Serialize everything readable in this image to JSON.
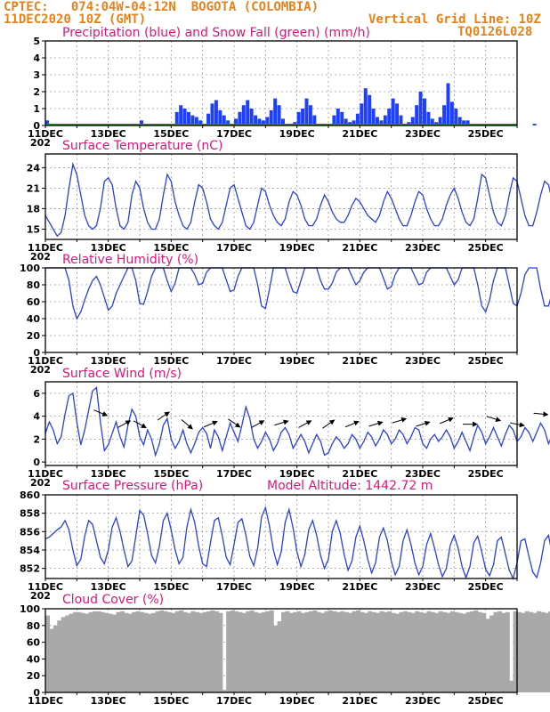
{
  "header": {
    "line1": "CPTEC:   074:04W-04:12N  BOGOTA (COLOMBIA)",
    "line2_left": "11DEC2020 10Z (GMT)",
    "line2_right": "Vertical Grid Line: 10Z",
    "line3_right": "TQ0126L028"
  },
  "x_axis": {
    "tick_labels": [
      "11DEC",
      "13DEC",
      "15DEC",
      "17DEC",
      "19DEC",
      "21DEC",
      "23DEC",
      "25DEC"
    ],
    "start_label_fragment": "202"
  },
  "colors": {
    "precip": "#1f3fff",
    "snow": "#00aa00",
    "line": "#2a3fe0",
    "cloud": "#a9a9a9",
    "title": "#e0147a",
    "header": "#e8801a"
  },
  "chart_data": [
    {
      "id": "precip",
      "type": "bar",
      "title": "Precipitation (blue) and Snow Fall (green) (mm/h)",
      "ylim": [
        0,
        5
      ],
      "yticks": [
        0,
        1,
        2,
        3,
        4,
        5
      ],
      "x_start_day": 11,
      "step_hours": 3,
      "series": [
        {
          "name": "Precipitation",
          "values": [
            0.3,
            0,
            0,
            0,
            0,
            0,
            0,
            0,
            0,
            0,
            0,
            0,
            0,
            0,
            0,
            0,
            0,
            0,
            0,
            0,
            0,
            0,
            0,
            0,
            0.3,
            0,
            0,
            0,
            0,
            0,
            0,
            0,
            0,
            0.8,
            1.2,
            1.0,
            0.8,
            0.6,
            0.5,
            0.3,
            0,
            0.7,
            1.3,
            1.5,
            0.9,
            0.6,
            0.3,
            0,
            0.4,
            0.8,
            1.2,
            1.5,
            1.0,
            0.6,
            0.4,
            0.3,
            0.5,
            0.9,
            1.6,
            1.2,
            0.4,
            0,
            0,
            0.2,
            0.8,
            1.0,
            1.6,
            1.2,
            0.6,
            0,
            0,
            0,
            0,
            0.6,
            1.0,
            0.8,
            0.4,
            0.2,
            0.3,
            0.7,
            1.3,
            2.2,
            1.8,
            1.0,
            0.5,
            0.3,
            0.6,
            1.0,
            1.6,
            1.3,
            0.6,
            0,
            0.2,
            0.5,
            1.2,
            2.0,
            1.6,
            0.8,
            0.4,
            0.2,
            0.5,
            1.2,
            2.5,
            1.4,
            1.0,
            0.5,
            0.3,
            0.3,
            0,
            0,
            0,
            0,
            0,
            0,
            0,
            0,
            0,
            0,
            0,
            0,
            0,
            0,
            0,
            0,
            0.1,
            0,
            0,
            0,
            0,
            0,
            0.5,
            0.3,
            0,
            0,
            0,
            0,
            0,
            0,
            0.6,
            1.0,
            0.3,
            0
          ]
        },
        {
          "name": "Snow Fall",
          "values": [
            0
          ]
        }
      ]
    },
    {
      "id": "temp",
      "type": "line",
      "title": "Surface Temperature (nC)",
      "ylim": [
        13.5,
        26
      ],
      "yticks": [
        15,
        18,
        21,
        24
      ],
      "x_start_day": 11,
      "step_hours": 3,
      "values": [
        17,
        16,
        15,
        14,
        14.5,
        17,
        21,
        24.5,
        23,
        20,
        17,
        15.5,
        15,
        15.5,
        18,
        22,
        22.5,
        21.5,
        18,
        15.5,
        15,
        16,
        20,
        22,
        21,
        18,
        16,
        15,
        15,
        16.5,
        20,
        23,
        22,
        19,
        17,
        15.5,
        15,
        16,
        19,
        21.5,
        21,
        19,
        16.5,
        15.5,
        15,
        16,
        18.5,
        21,
        21.5,
        19.5,
        17.5,
        15.5,
        15,
        16,
        18.5,
        21,
        20.5,
        18.5,
        17,
        16,
        15.5,
        16.5,
        19,
        20.5,
        20,
        18.5,
        16.5,
        15.5,
        15.5,
        16.5,
        18.5,
        20,
        19,
        17.5,
        16.5,
        16,
        16,
        17,
        18.5,
        19.5,
        19,
        18,
        17,
        16.5,
        16,
        17,
        19,
        20.5,
        19.5,
        18,
        16.5,
        15.5,
        15.5,
        17,
        19,
        20.5,
        20,
        18,
        16.5,
        15.5,
        15.5,
        16.5,
        18.5,
        20,
        21,
        19.5,
        17.5,
        16,
        15.5,
        16.5,
        19.5,
        23,
        22.5,
        20,
        17.5,
        16,
        15.5,
        17,
        20,
        22.5,
        22,
        19.5,
        17,
        15.5,
        15.5,
        17.5,
        20,
        22,
        21.5,
        19,
        16.5,
        15.5,
        15.5,
        17.5,
        21.5,
        23.5,
        22,
        20
      ]
    },
    {
      "id": "rh",
      "type": "line",
      "title": "Relative Humidity (%)",
      "ylim": [
        0,
        100
      ],
      "yticks": [
        0,
        20,
        40,
        60,
        80,
        100
      ],
      "x_start_day": 11,
      "step_hours": 3,
      "values": [
        100,
        100,
        100,
        100,
        100,
        100,
        85,
        55,
        40,
        48,
        62,
        75,
        85,
        90,
        80,
        65,
        50,
        55,
        70,
        80,
        90,
        100,
        100,
        85,
        58,
        57,
        72,
        90,
        100,
        100,
        100,
        85,
        72,
        82,
        100,
        100,
        100,
        100,
        92,
        80,
        82,
        95,
        100,
        100,
        100,
        100,
        86,
        72,
        74,
        90,
        100,
        100,
        100,
        100,
        80,
        55,
        52,
        75,
        100,
        100,
        100,
        100,
        85,
        72,
        70,
        85,
        100,
        100,
        100,
        100,
        85,
        75,
        75,
        82,
        95,
        100,
        100,
        100,
        90,
        80,
        85,
        95,
        100,
        100,
        100,
        100,
        88,
        75,
        78,
        92,
        100,
        100,
        100,
        100,
        90,
        80,
        82,
        95,
        100,
        100,
        100,
        100,
        100,
        90,
        80,
        86,
        100,
        100,
        100,
        100,
        80,
        55,
        48,
        62,
        85,
        100,
        100,
        100,
        80,
        58,
        55,
        70,
        92,
        100,
        100,
        100,
        75,
        55,
        55,
        72,
        100,
        100,
        100,
        100,
        60,
        45,
        48,
        70
      ]
    },
    {
      "id": "wind",
      "type": "line",
      "title": "Surface Wind (m/s)",
      "ylim": [
        -0.3,
        7
      ],
      "yticks": [
        0,
        2,
        4,
        6
      ],
      "x_start_day": 11,
      "step_hours": 3,
      "values": [
        2.5,
        3.5,
        2.8,
        1.6,
        2.2,
        4.2,
        5.8,
        6.0,
        3.5,
        1.5,
        2.8,
        4.5,
        6.2,
        6.5,
        3.5,
        1.0,
        1.5,
        2.5,
        3.5,
        2.2,
        1.3,
        3.2,
        4.6,
        4.0,
        2.2,
        1.5,
        2.8,
        2.0,
        0.6,
        1.6,
        3.2,
        3.8,
        2.0,
        1.2,
        1.8,
        2.8,
        1.6,
        0.8,
        1.6,
        2.6,
        3.0,
        2.5,
        1.2,
        2.8,
        2.2,
        1.0,
        2.2,
        3.4,
        2.6,
        1.8,
        3.2,
        4.8,
        3.8,
        2.0,
        1.2,
        1.8,
        2.6,
        2.0,
        1.0,
        1.6,
        2.6,
        3.0,
        2.4,
        1.2,
        1.8,
        2.4,
        1.8,
        0.8,
        1.6,
        2.4,
        1.8,
        0.6,
        0.8,
        1.6,
        2.2,
        1.8,
        1.2,
        1.6,
        2.4,
        2.0,
        1.2,
        1.8,
        2.6,
        2.2,
        1.4,
        2.0,
        2.8,
        2.4,
        1.6,
        2.0,
        2.8,
        2.4,
        1.6,
        2.2,
        3.0,
        2.8,
        1.6,
        1.2,
        2.0,
        2.4,
        1.8,
        2.2,
        2.8,
        2.2,
        1.2,
        1.8,
        2.6,
        1.8,
        1.0,
        2.2,
        3.2,
        2.6,
        1.6,
        2.2,
        3.0,
        2.2,
        1.4,
        2.4,
        3.2,
        2.8,
        1.8,
        2.2,
        3.0,
        2.6,
        1.8,
        2.6,
        3.4,
        2.8,
        1.6,
        2.4,
        3.2,
        2.6,
        1.4,
        2.6,
        3.2,
        2.2,
        1.2,
        0.3
      ]
    },
    {
      "id": "pressure",
      "type": "line",
      "title": "Surface Pressure (hPa)",
      "annotation": "Model Altitude: 1442.72 m",
      "ylim": [
        850.9,
        860
      ],
      "yticks": [
        852,
        854,
        856,
        858,
        860
      ],
      "x_start_day": 11,
      "step_hours": 3,
      "values": [
        855.2,
        855.4,
        855.8,
        856.2,
        856.5,
        857.2,
        856.2,
        854.0,
        852.3,
        853.0,
        855.5,
        857.2,
        856.8,
        855.0,
        853.2,
        852.5,
        854.0,
        856.5,
        857.5,
        856.0,
        854.0,
        852.2,
        852.8,
        855.5,
        858.3,
        857.8,
        855.8,
        853.4,
        852.6,
        854.4,
        857.2,
        858.0,
        856.2,
        854.0,
        852.5,
        853.2,
        856.5,
        858.4,
        857.0,
        854.4,
        852.5,
        852.2,
        854.8,
        857.2,
        857.5,
        855.5,
        853.2,
        852.4,
        854.6,
        857.0,
        857.4,
        855.6,
        853.3,
        852.3,
        854.2,
        857.6,
        858.6,
        856.6,
        854.0,
        852.4,
        853.8,
        857.0,
        858.4,
        856.4,
        853.8,
        852.2,
        853.5,
        856.2,
        857.2,
        855.6,
        853.4,
        852.0,
        853.0,
        856.0,
        857.2,
        855.8,
        853.5,
        851.8,
        852.8,
        855.4,
        856.6,
        855.0,
        853.0,
        851.5,
        852.6,
        855.4,
        856.4,
        855.0,
        852.8,
        851.3,
        852.2,
        855.0,
        856.2,
        854.6,
        852.6,
        851.3,
        852.2,
        854.6,
        855.8,
        854.2,
        852.4,
        851.1,
        852.0,
        854.5,
        855.6,
        854.2,
        852.2,
        851.0,
        852.2,
        854.8,
        855.5,
        853.8,
        851.9,
        851.2,
        852.4,
        855.0,
        855.4,
        853.6,
        851.8,
        850.9,
        852.6,
        855.0,
        855.2,
        853.3,
        851.6,
        851.0,
        852.6,
        855.0,
        855.6,
        853.4,
        851.6,
        851.0,
        852.4,
        854.8,
        855.6,
        853.6,
        851.8,
        854.0
      ]
    },
    {
      "id": "cloud",
      "type": "area",
      "title": "Cloud Cover (%)",
      "ylim": [
        0,
        100
      ],
      "yticks": [
        0,
        20,
        40,
        60,
        80,
        100
      ],
      "x_start_day": 11,
      "step_hours": 3,
      "values": [
        92,
        76,
        80,
        86,
        90,
        92,
        94,
        96,
        96,
        95,
        94,
        96,
        97,
        97,
        96,
        95,
        94,
        93,
        96,
        97,
        95,
        94,
        96,
        97,
        96,
        95,
        94,
        95,
        97,
        98,
        97,
        96,
        95,
        97,
        98,
        96,
        95,
        97,
        96,
        95,
        96,
        97,
        98,
        97,
        95,
        3,
        97,
        98,
        97,
        96,
        95,
        97,
        98,
        96,
        95,
        96,
        97,
        98,
        80,
        85,
        96,
        97,
        95,
        96,
        97,
        95,
        96,
        97,
        98,
        96,
        95,
        97,
        98,
        97,
        96,
        97,
        96,
        95,
        97,
        98,
        96,
        95,
        97,
        96,
        95,
        97,
        96,
        97,
        95,
        94,
        96,
        97,
        96,
        95,
        97,
        96,
        95,
        97,
        96,
        95,
        97,
        96,
        95,
        97,
        96,
        95,
        94,
        96,
        97,
        98,
        96,
        95,
        88,
        92,
        96,
        97,
        95,
        96,
        14,
        97,
        96,
        95,
        97,
        96,
        95,
        97,
        96,
        95,
        97,
        96,
        95,
        94,
        96,
        95,
        92,
        97,
        96,
        95,
        97,
        96,
        95
      ]
    }
  ]
}
